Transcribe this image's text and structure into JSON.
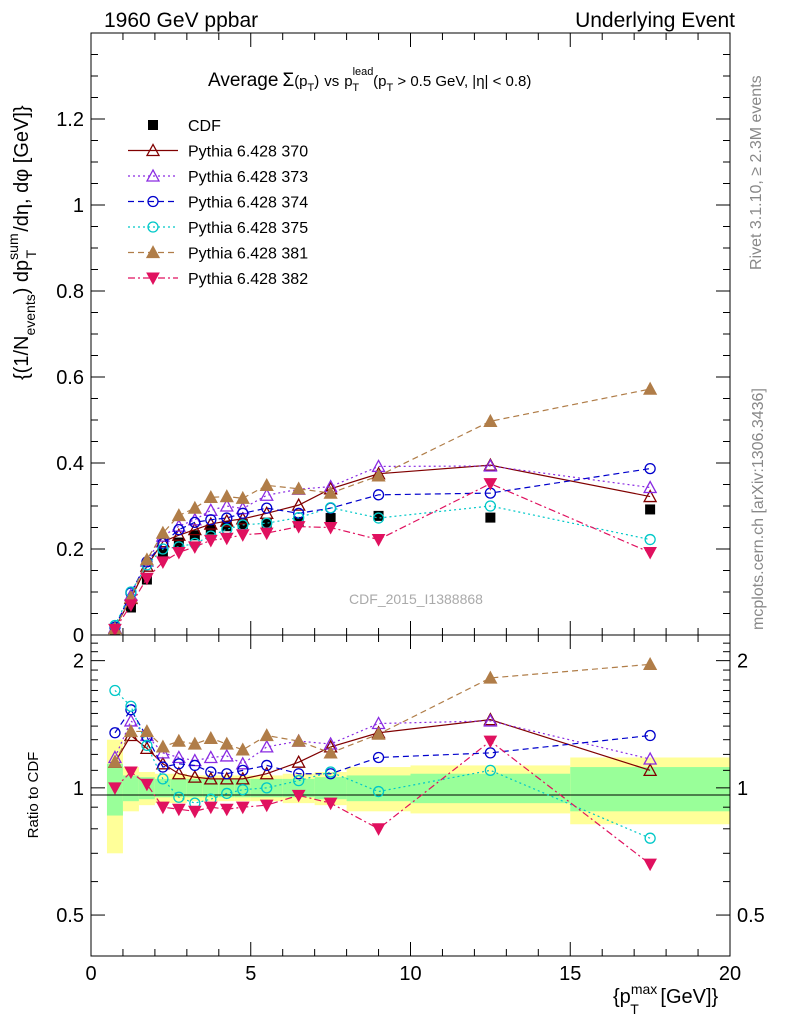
{
  "header": {
    "left": "1960 GeV ppbar",
    "right": "Underlying Event"
  },
  "title": {
    "prefix": "Average",
    "sigma": "Σ",
    "paren_arg": "(p",
    "paren_sub": "T",
    "paren_close": ")",
    "vs": "vs",
    "p": "p",
    "p_sup": "lead",
    "p_sub": "T",
    "cut1": "(p",
    "cut1_sub": "T",
    "cut1_rest": " > 0.5 GeV, |η| < 0.8)"
  },
  "side_labels": {
    "rivet": "Rivet 3.1.10, ≥ 2.3M events",
    "mcplots": "mcplots.cern.ch [arXiv:1306.3436]"
  },
  "watermark": "CDF_2015_I1388868",
  "ylabel_main": {
    "a": "{(1/N",
    "a_sub": "events",
    "b": ") dp",
    "b_sup": "sum",
    "b_sub": "T",
    "c": "/dη, dφ [GeV]}"
  },
  "ylabel_ratio": "Ratio to CDF",
  "xlabel": {
    "a": "{p",
    "a_sup": "max",
    "a_sub": "T",
    "b": " [GeV]}"
  },
  "chart_data": [
    {
      "type": "scatter",
      "panel": "main",
      "xlim": [
        0,
        20
      ],
      "ylim": [
        0,
        1.4
      ],
      "xticks": [
        0,
        5,
        10,
        15,
        20
      ],
      "xtick_labels": [
        "0",
        "5",
        "10",
        "15",
        "20"
      ],
      "yticks": [
        0,
        0.2,
        0.4,
        0.6,
        0.8,
        1,
        1.2
      ],
      "ytick_labels": [
        "0",
        "0.2",
        "0.4",
        "0.6",
        "0.8",
        "1",
        "1.2"
      ],
      "legend_position": "top-left",
      "x": [
        0.75,
        1.25,
        1.75,
        2.25,
        2.75,
        3.25,
        3.75,
        4.25,
        4.75,
        5.5,
        6.5,
        7.5,
        9,
        12.5,
        17.5
      ],
      "series": [
        {
          "name": "CDF",
          "color": "#000000",
          "marker": "square",
          "dash": "none",
          "values": [
            0.013,
            0.064,
            0.129,
            0.19,
            0.215,
            0.232,
            0.245,
            0.253,
            0.258,
            0.261,
            0.263,
            0.272,
            0.277,
            0.273,
            0.292
          ]
        },
        {
          "name": "Pythia 6.428 370",
          "color": "#800000",
          "marker": "triangle-open",
          "dash": "solid",
          "values": [
            0.016,
            0.085,
            0.16,
            0.217,
            0.232,
            0.245,
            0.258,
            0.265,
            0.27,
            0.283,
            0.302,
            0.34,
            0.375,
            0.395,
            0.322
          ]
        },
        {
          "name": "Pythia 6.428 373",
          "color": "#8a2be2",
          "marker": "triangle-open",
          "dash": "dot",
          "values": [
            0.017,
            0.092,
            0.172,
            0.23,
            0.253,
            0.268,
            0.29,
            0.3,
            0.294,
            0.325,
            0.339,
            0.345,
            0.392,
            0.393,
            0.343
          ]
        },
        {
          "name": "Pythia 6.428 374",
          "color": "#0000cc",
          "marker": "circle-open",
          "dash": "dash",
          "values": [
            0.018,
            0.098,
            0.17,
            0.213,
            0.245,
            0.262,
            0.268,
            0.272,
            0.283,
            0.295,
            0.283,
            0.295,
            0.326,
            0.33,
            0.387
          ]
        },
        {
          "name": "Pythia 6.428 375",
          "color": "#00c8c8",
          "marker": "circle-open",
          "dash": "dot",
          "values": [
            0.022,
            0.1,
            0.163,
            0.2,
            0.205,
            0.213,
            0.23,
            0.246,
            0.256,
            0.26,
            0.273,
            0.296,
            0.272,
            0.3,
            0.222
          ]
        },
        {
          "name": "Pythia 6.428 381",
          "color": "#b07d48",
          "marker": "triangle-filled",
          "dash": "dash",
          "values": [
            0.015,
            0.087,
            0.175,
            0.237,
            0.278,
            0.295,
            0.32,
            0.322,
            0.318,
            0.348,
            0.34,
            0.33,
            0.37,
            0.497,
            0.572
          ]
        },
        {
          "name": "Pythia 6.428 382",
          "color": "#e0115f",
          "marker": "triangle-down-filled",
          "dash": "dashdot",
          "values": [
            0.013,
            0.07,
            0.132,
            0.17,
            0.192,
            0.205,
            0.22,
            0.225,
            0.233,
            0.237,
            0.252,
            0.25,
            0.222,
            0.352,
            0.192
          ]
        }
      ]
    },
    {
      "type": "scatter",
      "panel": "ratio",
      "xlim": [
        0,
        20
      ],
      "ylim": [
        0.4,
        2.3
      ],
      "log_y": true,
      "yticks": [
        0.5,
        1,
        2
      ],
      "ytick_labels": [
        "0.5",
        "1",
        "2"
      ],
      "x": [
        0.75,
        1.25,
        1.75,
        2.25,
        2.75,
        3.25,
        3.75,
        4.25,
        4.75,
        5.5,
        6.5,
        7.5,
        9,
        12.5,
        17.5
      ],
      "bins": [
        0.5,
        1,
        1.5,
        2,
        2.5,
        3,
        3.5,
        4,
        4.5,
        5,
        6,
        7,
        8,
        10,
        15,
        20
      ],
      "band_inner": [
        0.14,
        0.07,
        0.06,
        0.05,
        0.05,
        0.05,
        0.05,
        0.05,
        0.05,
        0.05,
        0.05,
        0.06,
        0.07,
        0.08,
        0.12
      ],
      "band_outer": [
        0.3,
        0.12,
        0.09,
        0.08,
        0.08,
        0.07,
        0.07,
        0.07,
        0.07,
        0.07,
        0.08,
        0.09,
        0.12,
        0.13,
        0.18
      ],
      "series": [
        {
          "name": "Pythia 6.428 370",
          "values": [
            1.15,
            1.33,
            1.24,
            1.14,
            1.08,
            1.06,
            1.05,
            1.05,
            1.05,
            1.08,
            1.15,
            1.25,
            1.35,
            1.45,
            1.1
          ]
        },
        {
          "name": "Pythia 6.428 373",
          "values": [
            1.18,
            1.44,
            1.33,
            1.21,
            1.18,
            1.16,
            1.18,
            1.19,
            1.14,
            1.25,
            1.29,
            1.27,
            1.42,
            1.44,
            1.17
          ]
        },
        {
          "name": "Pythia 6.428 374",
          "values": [
            1.35,
            1.53,
            1.32,
            1.12,
            1.14,
            1.13,
            1.09,
            1.08,
            1.1,
            1.13,
            1.08,
            1.08,
            1.18,
            1.21,
            1.33
          ]
        },
        {
          "name": "Pythia 6.428 375",
          "values": [
            1.7,
            1.56,
            1.26,
            1.05,
            0.95,
            0.92,
            0.94,
            0.97,
            0.99,
            1.0,
            1.04,
            1.09,
            0.98,
            1.1,
            0.76
          ]
        },
        {
          "name": "Pythia 6.428 381",
          "values": [
            1.15,
            1.36,
            1.36,
            1.25,
            1.29,
            1.27,
            1.31,
            1.27,
            1.23,
            1.33,
            1.29,
            1.21,
            1.34,
            1.82,
            1.96
          ]
        },
        {
          "name": "Pythia 6.428 382",
          "values": [
            1.0,
            1.09,
            1.02,
            0.9,
            0.89,
            0.88,
            0.9,
            0.89,
            0.9,
            0.91,
            0.96,
            0.92,
            0.8,
            1.29,
            0.66
          ]
        }
      ]
    }
  ]
}
